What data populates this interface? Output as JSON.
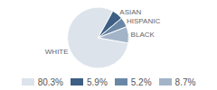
{
  "chart_data": {
    "type": "pie",
    "categories": [
      "WHITE",
      "ASIAN",
      "HISPANIC",
      "BLACK"
    ],
    "values": [
      80.3,
      5.9,
      5.2,
      8.7
    ],
    "value_labels": [
      "80.3%",
      "5.9%",
      "5.2%",
      "8.7%"
    ],
    "colors": [
      "#dde3ea",
      "#3e5f83",
      "#6b87a6",
      "#a3b4c8"
    ],
    "legend": "bottom"
  }
}
